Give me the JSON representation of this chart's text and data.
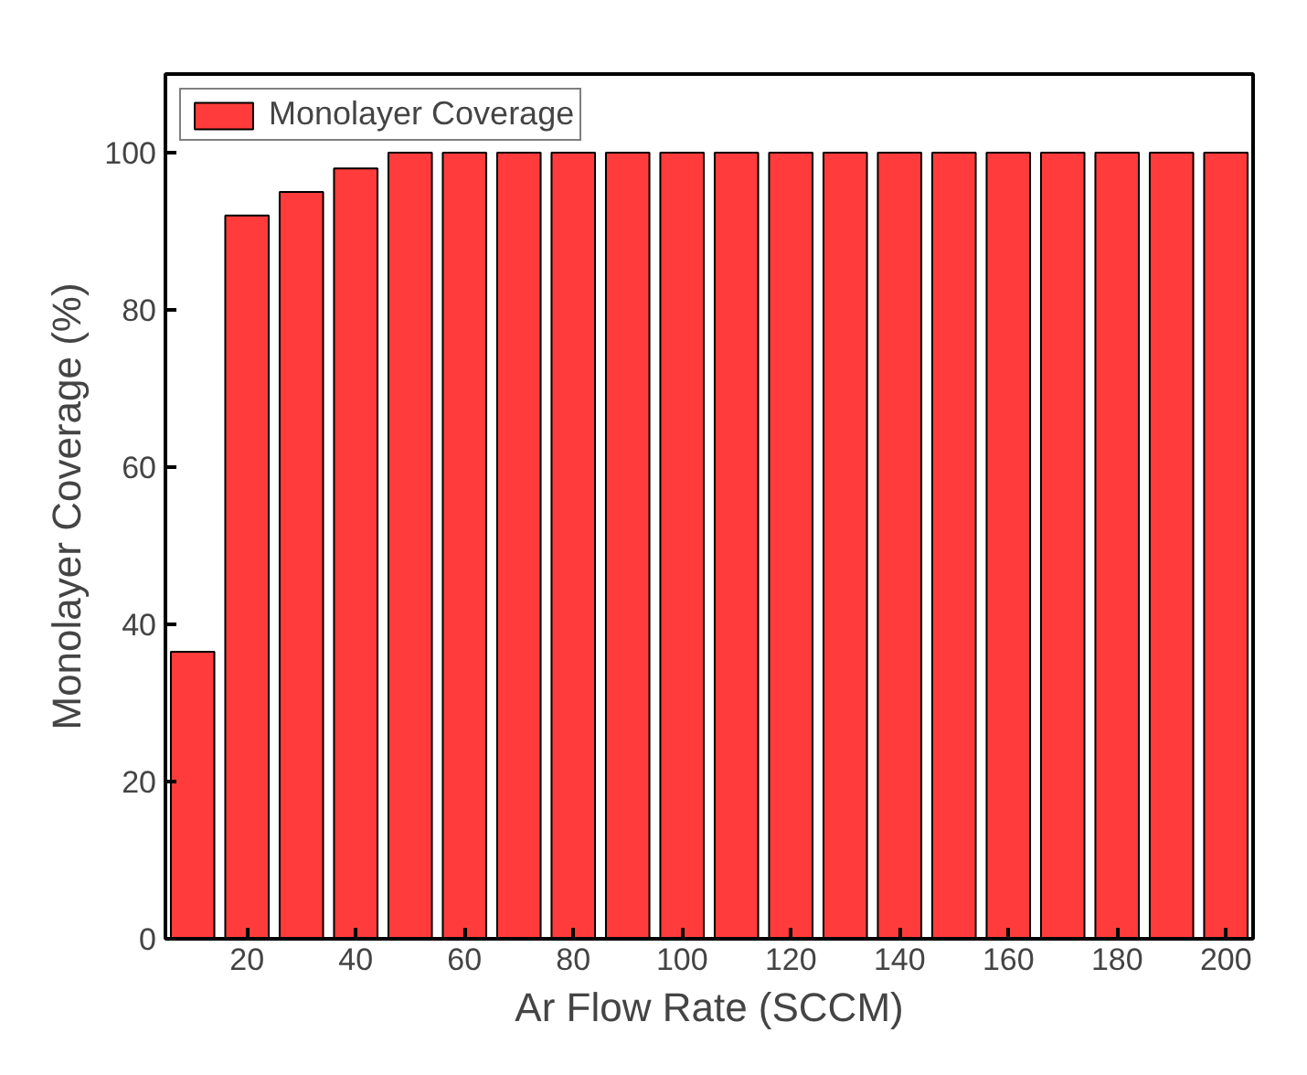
{
  "chart_data": {
    "type": "bar",
    "xlabel": "Ar Flow Rate (SCCM)",
    "ylabel": "Monolayer Coverage (%)",
    "x": [
      10,
      20,
      30,
      40,
      50,
      60,
      70,
      80,
      90,
      100,
      110,
      120,
      130,
      140,
      150,
      160,
      170,
      180,
      190,
      200
    ],
    "series": [
      {
        "name": "Monolayer Coverage",
        "color": "#ff3b3b",
        "values": [
          36.5,
          92,
          95,
          98,
          100,
          100,
          100,
          100,
          100,
          100,
          100,
          100,
          100,
          100,
          100,
          100,
          100,
          100,
          100,
          100
        ]
      }
    ],
    "xlim": [
      5,
      205
    ],
    "xticks": [
      20,
      40,
      60,
      80,
      100,
      120,
      140,
      160,
      180,
      200
    ],
    "ylim": [
      0,
      110
    ],
    "yticks": [
      0,
      20,
      40,
      60,
      80,
      100
    ],
    "grid": false,
    "legend": "top left"
  }
}
